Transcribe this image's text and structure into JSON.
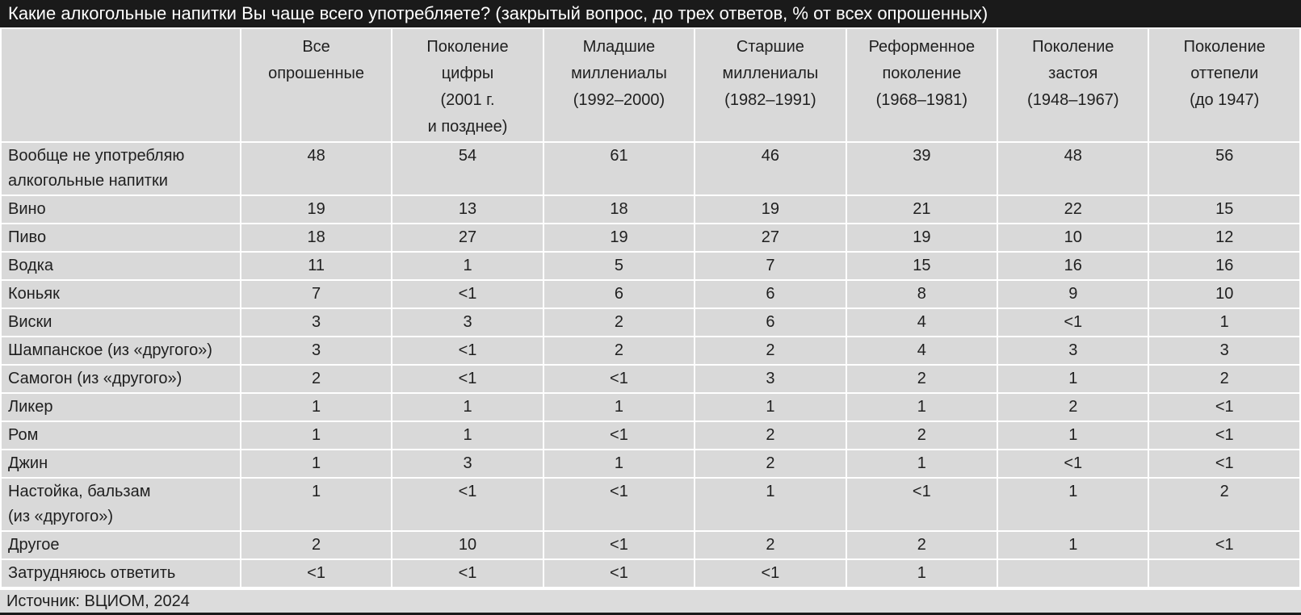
{
  "title": "Какие алкогольные напитки Вы чаще всего употребляете? (закрытый вопрос, до трех ответов, % от всех опрошенных)",
  "source": "Источник: ВЦИОМ, 2024",
  "colors": {
    "title_bar_bg": "#1a1a1a",
    "title_text": "#ffffff",
    "cell_bg": "#d9d9d9",
    "separator": "#ffffff",
    "text": "#1f1f1f"
  },
  "chart_data": {
    "type": "table",
    "unit": "% от всех опрошенных",
    "columns": [
      "Все\nопрошенные",
      "Поколение\nцифры\n(2001 г.\nи позднее)",
      "Младшие\nмиллениалы\n(1992–2000)",
      "Старшие\nмиллениалы\n(1982–1991)",
      "Реформенное\nпоколение\n(1968–1981)",
      "Поколение\nзастоя\n(1948–1967)",
      "Поколение\nоттепели\n(до 1947)"
    ],
    "rows": [
      {
        "label": "Вообще не употребляю\nалкогольные напитки",
        "values": [
          "48",
          "54",
          "61",
          "46",
          "39",
          "48",
          "56"
        ]
      },
      {
        "label": "Вино",
        "values": [
          "19",
          "13",
          "18",
          "19",
          "21",
          "22",
          "15"
        ]
      },
      {
        "label": "Пиво",
        "values": [
          "18",
          "27",
          "19",
          "27",
          "19",
          "10",
          "12"
        ]
      },
      {
        "label": "Водка",
        "values": [
          "11",
          "1",
          "5",
          "7",
          "15",
          "16",
          "16"
        ]
      },
      {
        "label": "Коньяк",
        "values": [
          "7",
          "<1",
          "6",
          "6",
          "8",
          "9",
          "10"
        ]
      },
      {
        "label": "Виски",
        "values": [
          "3",
          "3",
          "2",
          "6",
          "4",
          "<1",
          "1"
        ]
      },
      {
        "label": "Шампанское (из «другого»)",
        "values": [
          "3",
          "<1",
          "2",
          "2",
          "4",
          "3",
          "3"
        ]
      },
      {
        "label": "Самогон (из «другого»)",
        "values": [
          "2",
          "<1",
          "<1",
          "3",
          "2",
          "1",
          "2"
        ]
      },
      {
        "label": "Ликер",
        "values": [
          "1",
          "1",
          "1",
          "1",
          "1",
          "2",
          "<1"
        ]
      },
      {
        "label": "Ром",
        "values": [
          "1",
          "1",
          "<1",
          "2",
          "2",
          "1",
          "<1"
        ]
      },
      {
        "label": "Джин",
        "values": [
          "1",
          "3",
          "1",
          "2",
          "1",
          "<1",
          "<1"
        ]
      },
      {
        "label": "Настойка, бальзам\n(из «другого»)",
        "values": [
          "1",
          "<1",
          "<1",
          "1",
          "<1",
          "1",
          "2"
        ]
      },
      {
        "label": "Другое",
        "values": [
          "2",
          "10",
          "<1",
          "2",
          "2",
          "1",
          "<1"
        ]
      },
      {
        "label": "Затрудняюсь ответить",
        "values": [
          "<1",
          "<1",
          "<1",
          "<1",
          "1",
          "",
          ""
        ]
      }
    ]
  }
}
